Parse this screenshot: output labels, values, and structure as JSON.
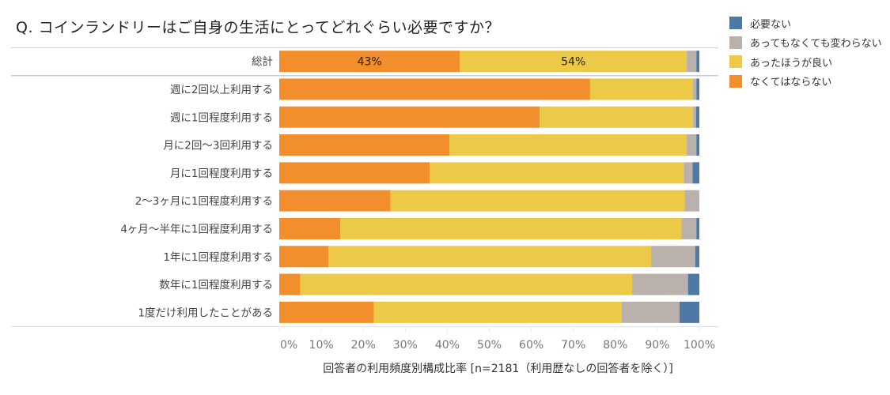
{
  "chart_data": {
    "type": "bar",
    "orientation": "horizontal",
    "stacked": true,
    "title": "Q. コインランドリーはご自身の生活にとってどれぐらい必要ですか？",
    "xlabel": "回答者の利用頻度別構成比率 [n=2181（利用歴なしの回答者を除く）]",
    "xlim": [
      0,
      100
    ],
    "xticks": [
      "0%",
      "10%",
      "20%",
      "30%",
      "40%",
      "50%",
      "60%",
      "70%",
      "80%",
      "90%",
      "100%"
    ],
    "categories": [
      "総計",
      "週に2回以上利用する",
      "週に1回程度利用する",
      "月に2回～3回利用する",
      "月に1回程度利用する",
      "2～3ヶ月に1回程度利用する",
      "4ヶ月～半年に1回程度利用する",
      "1年に1回程度利用する",
      "数年に1回程度利用する",
      "1度だけ利用したことがある"
    ],
    "series": [
      {
        "name": "なくてはならない",
        "color": "#F28E2B",
        "values": [
          43,
          74,
          62,
          40.5,
          35.8,
          26.5,
          14.5,
          11.7,
          5,
          22.5
        ]
      },
      {
        "name": "あったほうが良い",
        "color": "#EDC948",
        "values": [
          54,
          24.5,
          36.5,
          56.5,
          60.5,
          70,
          81.2,
          76.8,
          79,
          59
        ]
      },
      {
        "name": "あってもなくても変わらない",
        "color": "#BAB0AC",
        "values": [
          2.3,
          0.8,
          0.7,
          2.3,
          2.1,
          3.5,
          3.6,
          10.5,
          13.3,
          13.8
        ]
      },
      {
        "name": "必要ない",
        "color": "#4E79A7",
        "values": [
          0.7,
          0.7,
          0.8,
          0.7,
          1.6,
          0,
          0.7,
          1.0,
          2.7,
          4.7
        ]
      }
    ],
    "data_labels": [
      {
        "category_index": 0,
        "series_index": 0,
        "text": "43%"
      },
      {
        "category_index": 0,
        "series_index": 1,
        "text": "54%"
      }
    ],
    "legend": {
      "placement": "top-right",
      "items": [
        {
          "name": "必要ない",
          "color": "#4E79A7"
        },
        {
          "name": "あってもなくても変わらない",
          "color": "#BAB0AC"
        },
        {
          "name": "あったほうが良い",
          "color": "#EDC948"
        },
        {
          "name": "なくてはならない",
          "color": "#F28E2B"
        }
      ]
    }
  }
}
